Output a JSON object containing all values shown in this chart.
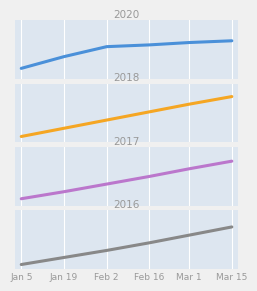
{
  "x_labels": [
    "Jan 5",
    "Jan 19",
    "Feb 2",
    "Feb 16",
    "Mar 1",
    "Mar 15"
  ],
  "x_ticks": [
    0,
    14,
    28,
    42,
    55,
    69
  ],
  "panels": [
    {
      "label": "2020",
      "color": "#4a90d9",
      "line_width": 2.2,
      "x": [
        0,
        14,
        28,
        42,
        55,
        69
      ],
      "y": [
        0.18,
        0.38,
        0.55,
        0.58,
        0.62,
        0.65
      ]
    },
    {
      "label": "2018",
      "color": "#f5a623",
      "line_width": 2.2,
      "x": [
        0,
        14,
        28,
        42,
        55,
        69
      ],
      "y": [
        0.1,
        0.24,
        0.38,
        0.52,
        0.65,
        0.78
      ]
    },
    {
      "label": "2017",
      "color": "#bb77cc",
      "line_width": 2.2,
      "x": [
        0,
        14,
        28,
        42,
        55,
        69
      ],
      "y": [
        0.12,
        0.24,
        0.37,
        0.5,
        0.63,
        0.76
      ]
    },
    {
      "label": "2016",
      "color": "#888888",
      "line_width": 2.2,
      "x": [
        0,
        14,
        28,
        42,
        55,
        69
      ],
      "y": [
        0.08,
        0.2,
        0.32,
        0.45,
        0.58,
        0.72
      ]
    }
  ],
  "bg_color": "#dde6f0",
  "fig_bg_color": "#f0f0f0",
  "label_color": "#999999",
  "label_fontsize": 7.5,
  "tick_fontsize": 6.5,
  "grid_color": "#ffffff",
  "grid_lw": 0.8
}
